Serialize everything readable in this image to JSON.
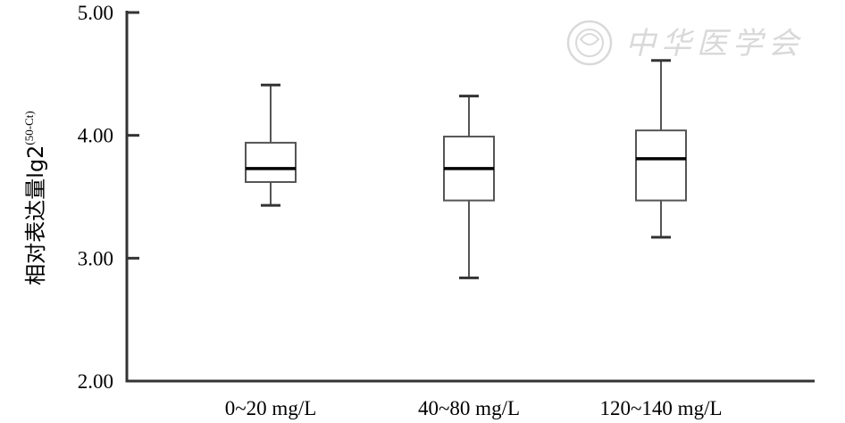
{
  "chart_data": {
    "type": "boxplot",
    "ylabel": "相对表达量lg2",
    "ylabel_superscript": "(50-Ct)",
    "ylim": [
      2.0,
      5.0
    ],
    "yticks": [
      "2.00",
      "3.00",
      "4.00",
      "5.00"
    ],
    "categories": [
      "0~20 mg/L",
      "40~80 mg/L",
      "120~140 mg/L"
    ],
    "boxes": [
      {
        "min": 3.43,
        "q1": 3.62,
        "median": 3.73,
        "q3": 3.94,
        "max": 4.41
      },
      {
        "min": 2.84,
        "q1": 3.47,
        "median": 3.73,
        "q3": 3.99,
        "max": 4.32
      },
      {
        "min": 3.17,
        "q1": 3.47,
        "median": 3.81,
        "q3": 4.04,
        "max": 4.61
      }
    ],
    "grid": false,
    "colors": {
      "box_stroke": "#555555",
      "median": "#000000",
      "axis": "#333333"
    }
  },
  "watermark": {
    "text": "中华医学会",
    "seal_icon": "association-seal-icon"
  }
}
